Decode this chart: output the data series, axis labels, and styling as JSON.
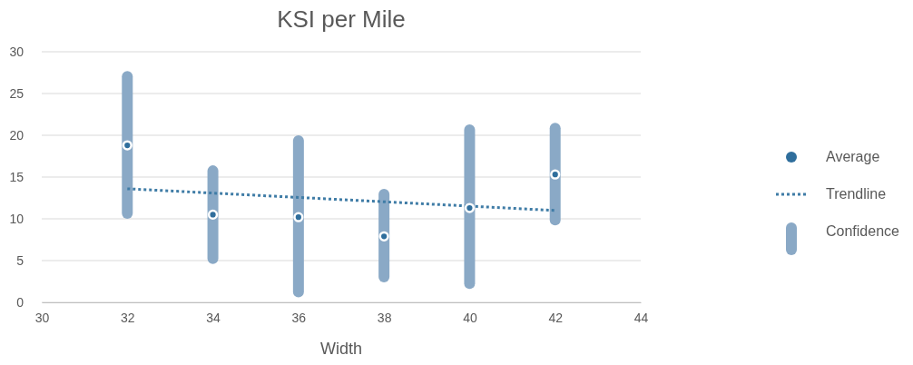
{
  "chart_data": {
    "type": "scatter",
    "title": "KSI per Mile",
    "xlabel": "Width",
    "xlim": [
      30,
      44
    ],
    "xticks": [
      30,
      32,
      34,
      36,
      38,
      40,
      42,
      44
    ],
    "ylim": [
      0,
      30
    ],
    "yticks": [
      0,
      5,
      10,
      15,
      20,
      25,
      30
    ],
    "grid": "y",
    "legend": "right",
    "series": [
      {
        "name": "Confidence",
        "type": "bar",
        "color": "#8aa9c6",
        "x": [
          32,
          34,
          36,
          38,
          40,
          42
        ],
        "base": [
          10.0,
          4.6,
          0.6,
          2.4,
          1.6,
          9.2
        ],
        "values": [
          17.7,
          11.8,
          19.4,
          11.2,
          19.7,
          12.3
        ]
      },
      {
        "name": "Trendline",
        "type": "line",
        "color": "#3f7ca6",
        "line_style": "dotted",
        "marker": "none",
        "x": [
          32,
          42
        ],
        "values": [
          13.6,
          11.0
        ]
      },
      {
        "name": "Average",
        "color": "#2f6e9c",
        "marker": "circle",
        "x": [
          32,
          34,
          36,
          38,
          40,
          42
        ],
        "values": [
          18.8,
          10.5,
          10.2,
          7.9,
          11.3,
          15.3
        ]
      }
    ]
  }
}
